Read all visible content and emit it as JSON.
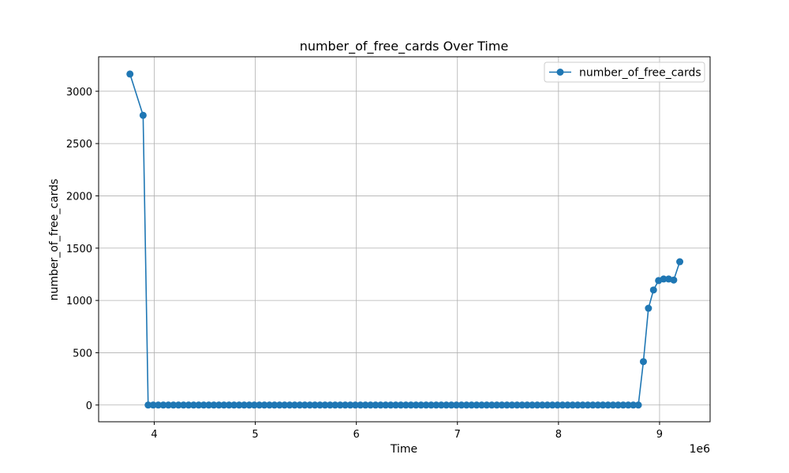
{
  "chart_data": {
    "type": "line",
    "title": "number_of_free_cards Over Time",
    "xlabel": "Time",
    "ylabel": "number_of_free_cards",
    "x_offset_label": "1e6",
    "xlim": [
      3450000,
      9500000
    ],
    "ylim": [
      -160,
      3330
    ],
    "x_ticks": [
      {
        "value": 4000000,
        "label": "4"
      },
      {
        "value": 5000000,
        "label": "5"
      },
      {
        "value": 6000000,
        "label": "6"
      },
      {
        "value": 7000000,
        "label": "7"
      },
      {
        "value": 8000000,
        "label": "8"
      },
      {
        "value": 9000000,
        "label": "9"
      }
    ],
    "y_ticks": [
      {
        "value": 0,
        "label": "0"
      },
      {
        "value": 500,
        "label": "500"
      },
      {
        "value": 1000,
        "label": "1000"
      },
      {
        "value": 1500,
        "label": "1500"
      },
      {
        "value": 2000,
        "label": "2000"
      },
      {
        "value": 2500,
        "label": "2500"
      },
      {
        "value": 3000,
        "label": "3000"
      }
    ],
    "grid": true,
    "legend_position": "top-right",
    "series": [
      {
        "name": "number_of_free_cards",
        "color": "#1f77b4",
        "marker": "circle",
        "x": [
          3760000,
          3890000,
          3940000,
          3990000,
          4040000,
          4090000,
          4140000,
          4190000,
          4240000,
          4290000,
          4340000,
          4390000,
          4440000,
          4490000,
          4540000,
          4590000,
          4640000,
          4690000,
          4740000,
          4790000,
          4840000,
          4890000,
          4940000,
          4990000,
          5040000,
          5090000,
          5140000,
          5190000,
          5240000,
          5290000,
          5340000,
          5390000,
          5440000,
          5490000,
          5540000,
          5590000,
          5640000,
          5690000,
          5740000,
          5790000,
          5840000,
          5890000,
          5940000,
          5990000,
          6040000,
          6090000,
          6140000,
          6190000,
          6240000,
          6290000,
          6340000,
          6390000,
          6440000,
          6490000,
          6540000,
          6590000,
          6640000,
          6690000,
          6740000,
          6790000,
          6840000,
          6890000,
          6940000,
          6990000,
          7040000,
          7090000,
          7140000,
          7190000,
          7240000,
          7290000,
          7340000,
          7390000,
          7440000,
          7490000,
          7540000,
          7590000,
          7640000,
          7690000,
          7740000,
          7790000,
          7840000,
          7890000,
          7940000,
          7990000,
          8040000,
          8090000,
          8140000,
          8190000,
          8240000,
          8290000,
          8340000,
          8390000,
          8440000,
          8490000,
          8540000,
          8590000,
          8640000,
          8690000,
          8740000,
          8790000,
          8840000,
          8890000,
          8940000,
          8990000,
          9040000,
          9090000,
          9140000,
          9200000
        ],
        "values": [
          3165,
          2770,
          0,
          0,
          0,
          0,
          0,
          0,
          0,
          0,
          0,
          0,
          0,
          0,
          0,
          0,
          0,
          0,
          0,
          0,
          0,
          0,
          0,
          0,
          0,
          0,
          0,
          0,
          0,
          0,
          0,
          0,
          0,
          0,
          0,
          0,
          0,
          0,
          0,
          0,
          0,
          0,
          0,
          0,
          0,
          0,
          0,
          0,
          0,
          0,
          0,
          0,
          0,
          0,
          0,
          0,
          0,
          0,
          0,
          0,
          0,
          0,
          0,
          0,
          0,
          0,
          0,
          0,
          0,
          0,
          0,
          0,
          0,
          0,
          0,
          0,
          0,
          0,
          0,
          0,
          0,
          0,
          0,
          0,
          0,
          0,
          0,
          0,
          0,
          0,
          0,
          0,
          0,
          0,
          0,
          0,
          0,
          0,
          0,
          0,
          415,
          925,
          1100,
          1190,
          1205,
          1205,
          1195,
          1370
        ]
      }
    ]
  }
}
